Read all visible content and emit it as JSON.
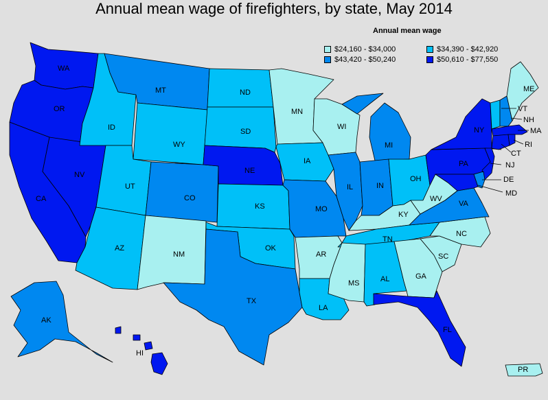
{
  "title": "Annual mean wage of firefighters, by state, May 2014",
  "legend": {
    "title": "Annual mean wage",
    "items": [
      {
        "range": "$24,160 - $34,000",
        "color": "#a8f0f0"
      },
      {
        "range": "$34,390 - $42,920",
        "color": "#00c0f8"
      },
      {
        "range": "$43,420 - $50,240",
        "color": "#0088f0"
      },
      {
        "range": "$50,610 - $77,550",
        "color": "#0018f0"
      }
    ]
  },
  "states": {
    "WA": {
      "label": "WA",
      "bin": 3
    },
    "OR": {
      "label": "OR",
      "bin": 3
    },
    "CA": {
      "label": "CA",
      "bin": 3
    },
    "NV": {
      "label": "NV",
      "bin": 3
    },
    "ID": {
      "label": "ID",
      "bin": 1
    },
    "MT": {
      "label": "MT",
      "bin": 2
    },
    "WY": {
      "label": "WY",
      "bin": 1
    },
    "UT": {
      "label": "UT",
      "bin": 1
    },
    "AZ": {
      "label": "AZ",
      "bin": 1
    },
    "CO": {
      "label": "CO",
      "bin": 2
    },
    "NM": {
      "label": "NM",
      "bin": 0
    },
    "ND": {
      "label": "ND",
      "bin": 1
    },
    "SD": {
      "label": "SD",
      "bin": 1
    },
    "NE": {
      "label": "NE",
      "bin": 3
    },
    "KS": {
      "label": "KS",
      "bin": 1
    },
    "OK": {
      "label": "OK",
      "bin": 1
    },
    "TX": {
      "label": "TX",
      "bin": 2
    },
    "MN": {
      "label": "MN",
      "bin": 0
    },
    "IA": {
      "label": "IA",
      "bin": 1
    },
    "MO": {
      "label": "MO",
      "bin": 2
    },
    "AR": {
      "label": "AR",
      "bin": 0
    },
    "LA": {
      "label": "LA",
      "bin": 1
    },
    "WI": {
      "label": "WI",
      "bin": 0
    },
    "IL": {
      "label": "IL",
      "bin": 2
    },
    "MI": {
      "label": "MI",
      "bin": 2
    },
    "IN": {
      "label": "IN",
      "bin": 2
    },
    "OH": {
      "label": "OH",
      "bin": 1
    },
    "KY": {
      "label": "KY",
      "bin": 0
    },
    "TN": {
      "label": "TN",
      "bin": 1
    },
    "MS": {
      "label": "MS",
      "bin": 0
    },
    "AL": {
      "label": "AL",
      "bin": 1
    },
    "GA": {
      "label": "GA",
      "bin": 0
    },
    "FL": {
      "label": "FL",
      "bin": 3
    },
    "SC": {
      "label": "SC",
      "bin": 0
    },
    "NC": {
      "label": "NC",
      "bin": 0
    },
    "VA": {
      "label": "VA",
      "bin": 2
    },
    "WV": {
      "label": "WV",
      "bin": 0
    },
    "PA": {
      "label": "PA",
      "bin": 3
    },
    "NY": {
      "label": "NY",
      "bin": 3
    },
    "NJ": {
      "label": "NJ",
      "bin": 3
    },
    "DE": {
      "label": "DE",
      "bin": 2
    },
    "MD": {
      "label": "MD",
      "bin": 3
    },
    "VT": {
      "label": "VT",
      "bin": 1
    },
    "NH": {
      "label": "NH",
      "bin": 2
    },
    "ME": {
      "label": "ME",
      "bin": 0
    },
    "MA": {
      "label": "MA",
      "bin": 3
    },
    "RI": {
      "label": "RI",
      "bin": 3
    },
    "CT": {
      "label": "CT",
      "bin": 3
    },
    "AK": {
      "label": "AK",
      "bin": 2
    },
    "HI": {
      "label": "HI",
      "bin": 3
    },
    "PR": {
      "label": "PR",
      "bin": 0
    }
  }
}
